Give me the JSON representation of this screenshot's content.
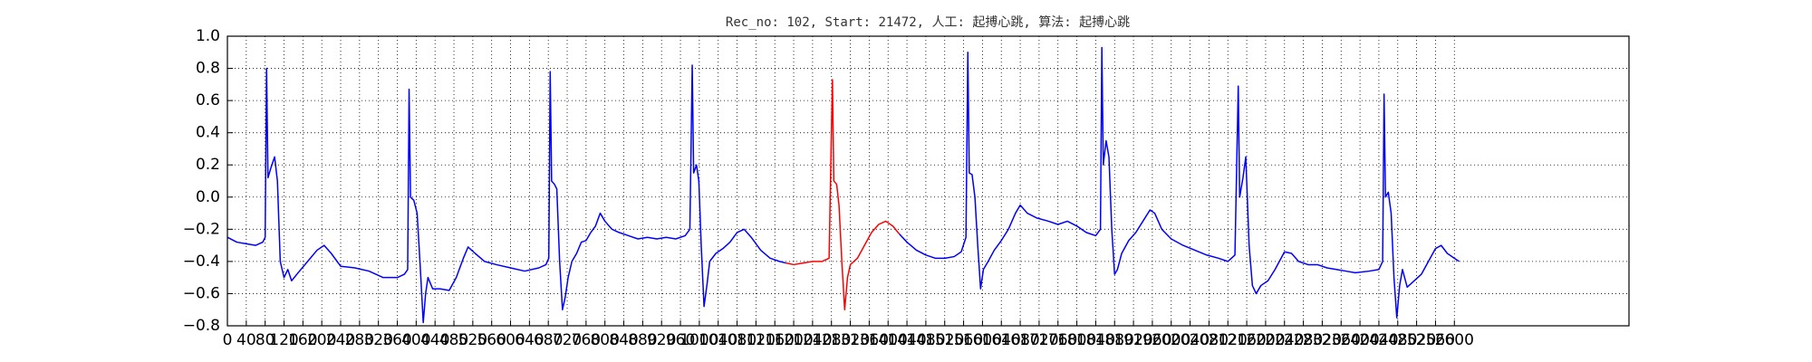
{
  "chart_data": {
    "type": "line",
    "title": "Rec_no: 102, Start: 21472, 人工: 起搏心跳, 算法: 起搏心跳",
    "xlim": [
      0,
      2970
    ],
    "ylim": [
      -0.8,
      1.0
    ],
    "xticks": [
      0,
      40,
      80,
      120,
      160,
      200,
      240,
      280,
      320,
      360,
      400,
      440,
      480,
      520,
      560,
      600,
      640,
      680,
      720,
      760,
      800,
      840,
      880,
      920,
      960,
      1000,
      1040,
      1080,
      1120,
      1160,
      1200,
      1240,
      1280,
      1320,
      1360,
      1400,
      1440,
      1480,
      1520,
      1560,
      1600,
      1640,
      1680,
      1720,
      1760,
      1800,
      1840,
      1880,
      1920,
      1960,
      2000,
      2040,
      2080,
      2120,
      2160,
      2200,
      2240,
      2280,
      2320,
      2360,
      2400,
      2440,
      2480,
      2520,
      2560,
      2600
    ],
    "yticks": [
      {
        "value": -0.8,
        "label": "−0.8"
      },
      {
        "value": -0.6,
        "label": "−0.6"
      },
      {
        "value": -0.4,
        "label": "−0.4"
      },
      {
        "value": -0.2,
        "label": "−0.2"
      },
      {
        "value": 0.0,
        "label": "0.0"
      },
      {
        "value": 0.2,
        "label": "0.2"
      },
      {
        "value": 0.4,
        "label": "0.4"
      },
      {
        "value": 0.6,
        "label": "0.6"
      },
      {
        "value": 0.8,
        "label": "0.8"
      },
      {
        "value": 1.0,
        "label": "1.0"
      }
    ],
    "grid": true,
    "series": [
      {
        "color": "#0000ff",
        "x": [
          0,
          20,
          40,
          60,
          75,
          80,
          83,
          86,
          92,
          100,
          106,
          112,
          120,
          128,
          136,
          150,
          170,
          190,
          205,
          220,
          240,
          270,
          300,
          330,
          360,
          375,
          382,
          385,
          388,
          395,
          402,
          408,
          415,
          420,
          425,
          435,
          450,
          470,
          485,
          500,
          510,
          525,
          545,
          570,
          600,
          630,
          660,
          675,
          681,
          684,
          687,
          693,
          698,
          704,
          710,
          716,
          722,
          730,
          740,
          750,
          760,
          770,
          780,
          790,
          800,
          815,
          830,
          850,
          870,
          890,
          910,
          930,
          950,
          970,
          980,
          985,
          988,
          994,
          999,
          1004,
          1010,
          1016,
          1022,
          1035,
          1050,
          1065,
          1080,
          1095,
          1110,
          1130,
          1150,
          1170,
          1184
        ],
        "values": [
          -0.25,
          -0.28,
          -0.29,
          -0.3,
          -0.28,
          -0.25,
          0.8,
          0.12,
          0.18,
          0.25,
          0.1,
          -0.4,
          -0.5,
          -0.45,
          -0.52,
          -0.47,
          -0.4,
          -0.33,
          -0.3,
          -0.35,
          -0.43,
          -0.44,
          -0.46,
          -0.5,
          -0.5,
          -0.48,
          -0.45,
          0.67,
          0.0,
          -0.02,
          -0.1,
          -0.4,
          -0.78,
          -0.6,
          -0.5,
          -0.57,
          -0.57,
          -0.58,
          -0.5,
          -0.38,
          -0.31,
          -0.35,
          -0.4,
          -0.42,
          -0.44,
          -0.46,
          -0.44,
          -0.42,
          -0.38,
          0.78,
          0.1,
          0.08,
          0.05,
          -0.4,
          -0.7,
          -0.62,
          -0.5,
          -0.4,
          -0.35,
          -0.28,
          -0.27,
          -0.22,
          -0.18,
          -0.1,
          -0.15,
          -0.2,
          -0.22,
          -0.24,
          -0.26,
          -0.25,
          -0.26,
          -0.25,
          -0.26,
          -0.24,
          -0.2,
          0.82,
          0.15,
          0.2,
          0.1,
          -0.3,
          -0.68,
          -0.55,
          -0.4,
          -0.35,
          -0.32,
          -0.28,
          -0.22,
          -0.2,
          -0.25,
          -0.33,
          -0.38,
          -0.4,
          -0.41
        ]
      },
      {
        "color": "#ff0000",
        "x": [
          1184,
          1200,
          1220,
          1240,
          1260,
          1275,
          1282,
          1285,
          1291,
          1296,
          1302,
          1308,
          1314,
          1320,
          1335,
          1350,
          1365,
          1380,
          1395,
          1410,
          1424
        ],
        "values": [
          -0.41,
          -0.42,
          -0.41,
          -0.4,
          -0.4,
          -0.38,
          0.73,
          0.1,
          0.08,
          -0.05,
          -0.4,
          -0.7,
          -0.5,
          -0.42,
          -0.38,
          -0.3,
          -0.22,
          -0.17,
          -0.15,
          -0.18,
          -0.23
        ]
      },
      {
        "color": "#0000ff",
        "x": [
          1424,
          1440,
          1460,
          1480,
          1500,
          1520,
          1540,
          1555,
          1565,
          1569,
          1572,
          1578,
          1584,
          1590,
          1596,
          1602,
          1612,
          1625,
          1640,
          1655,
          1670,
          1680,
          1695,
          1715,
          1740,
          1760,
          1780,
          1800,
          1820,
          1840,
          1850,
          1853,
          1856,
          1862,
          1868,
          1874,
          1880,
          1886,
          1895,
          1910,
          1925,
          1940,
          1955,
          1965,
          1980,
          2000,
          2025,
          2050,
          2075,
          2100,
          2120,
          2135,
          2142,
          2145,
          2152,
          2158,
          2165,
          2172,
          2180,
          2190,
          2205,
          2220,
          2240,
          2255,
          2270,
          2290,
          2310,
          2330,
          2350,
          2370,
          2390,
          2420,
          2440,
          2448,
          2451,
          2454,
          2460,
          2466,
          2472,
          2478,
          2484,
          2490,
          2500,
          2515,
          2530,
          2545,
          2560,
          2572,
          2585,
          2600,
          2610
        ],
        "values": [
          -0.23,
          -0.28,
          -0.33,
          -0.36,
          -0.38,
          -0.38,
          -0.37,
          -0.34,
          -0.25,
          0.9,
          0.15,
          0.14,
          0.0,
          -0.3,
          -0.57,
          -0.45,
          -0.4,
          -0.33,
          -0.27,
          -0.2,
          -0.1,
          -0.05,
          -0.1,
          -0.13,
          -0.15,
          -0.17,
          -0.15,
          -0.18,
          -0.22,
          -0.24,
          -0.2,
          0.93,
          0.2,
          0.35,
          0.25,
          -0.2,
          -0.48,
          -0.45,
          -0.35,
          -0.27,
          -0.22,
          -0.15,
          -0.08,
          -0.1,
          -0.2,
          -0.26,
          -0.3,
          -0.33,
          -0.36,
          -0.38,
          -0.4,
          -0.36,
          0.69,
          0.0,
          0.12,
          0.25,
          -0.3,
          -0.55,
          -0.6,
          -0.55,
          -0.52,
          -0.45,
          -0.34,
          -0.35,
          -0.4,
          -0.42,
          -0.42,
          -0.44,
          -0.45,
          -0.46,
          -0.47,
          -0.46,
          -0.45,
          -0.4,
          0.64,
          0.0,
          0.03,
          -0.1,
          -0.5,
          -0.75,
          -0.55,
          -0.45,
          -0.56,
          -0.52,
          -0.48,
          -0.4,
          -0.32,
          -0.3,
          -0.35,
          -0.38,
          -0.4
        ]
      }
    ]
  }
}
